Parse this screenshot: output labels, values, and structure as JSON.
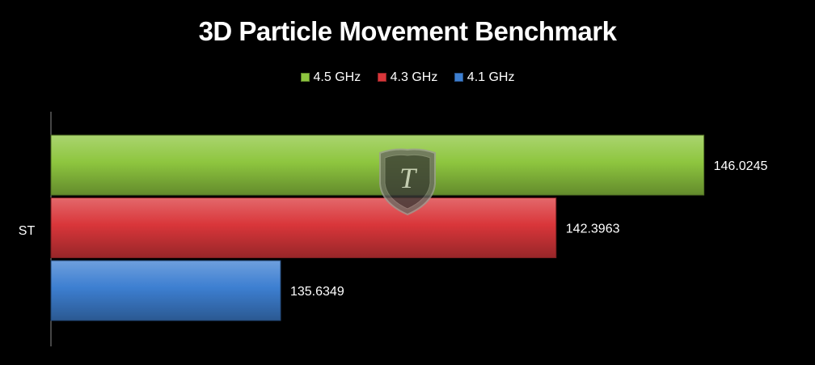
{
  "chart_data": {
    "type": "bar",
    "orientation": "horizontal",
    "title": "3D Particle Movement Benchmark",
    "categories": [
      "ST"
    ],
    "series": [
      {
        "name": "4.5 GHz",
        "values": [
          146.0245
        ],
        "value_labels": [
          "146.0245"
        ],
        "color": "#8ec63f"
      },
      {
        "name": "4.3 GHz",
        "values": [
          142.3963
        ],
        "value_labels": [
          "142.3963"
        ],
        "color": "#d9363a"
      },
      {
        "name": "4.1 GHz",
        "values": [
          135.6349
        ],
        "value_labels": [
          "135.6349"
        ],
        "color": "#3d7fd1"
      }
    ],
    "xlim": [
      130,
      147.5
    ],
    "axis_tick_labels_visible": false,
    "grid": false,
    "legend_position": "top"
  },
  "watermark": {
    "icon": "shield-emblem-icon",
    "letter": "T"
  }
}
